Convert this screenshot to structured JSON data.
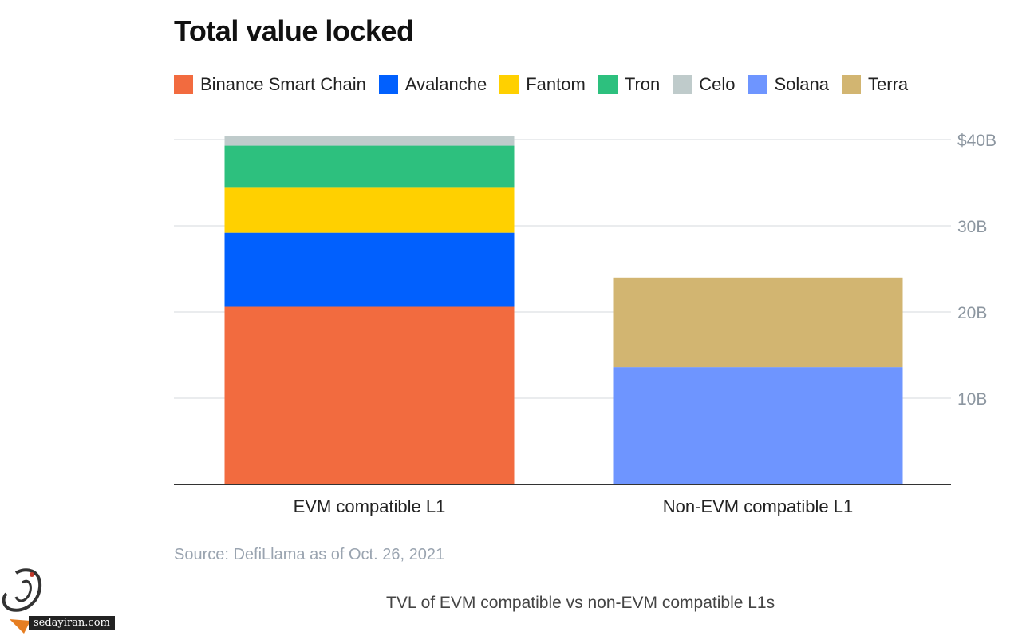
{
  "chart_data": {
    "type": "bar",
    "stacked": true,
    "title": "Total value locked",
    "categories": [
      "EVM compatible L1",
      "Non-EVM compatible L1"
    ],
    "series": [
      {
        "name": "Binance Smart Chain",
        "color": "#f26b3f",
        "values": [
          20.6,
          0
        ]
      },
      {
        "name": "Avalanche",
        "color": "#0160fe",
        "values": [
          8.6,
          0
        ]
      },
      {
        "name": "Fantom",
        "color": "#ffd000",
        "values": [
          5.3,
          0
        ]
      },
      {
        "name": "Tron",
        "color": "#2dc07e",
        "values": [
          4.8,
          0
        ]
      },
      {
        "name": "Celo",
        "color": "#bfcbcb",
        "values": [
          1.1,
          0
        ]
      },
      {
        "name": "Solana",
        "color": "#6e95ff",
        "values": [
          0,
          13.6
        ]
      },
      {
        "name": "Terra",
        "color": "#d2b571",
        "values": [
          0,
          10.4
        ]
      }
    ],
    "ylim": [
      0,
      40
    ],
    "yticks": [
      10,
      20,
      30,
      40
    ],
    "ytick_labels": [
      "10B",
      "20B",
      "30B",
      "$40B"
    ],
    "grid": true,
    "legend_position": "top-left",
    "xlabel": "",
    "ylabel": ""
  },
  "source": "Source: DefiLlama as of Oct. 26, 2021",
  "caption": "TVL of EVM compatible vs non-EVM compatible L1s",
  "watermark_text": "sedayiran.com"
}
